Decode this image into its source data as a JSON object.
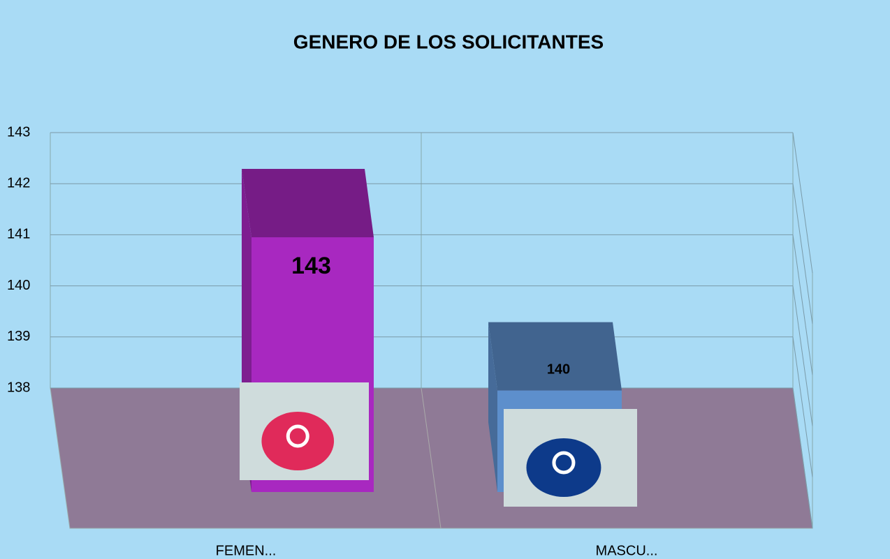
{
  "chart_data": {
    "type": "bar3d",
    "title": "GENERO DE LOS SOLICITANTES",
    "categories": [
      "FEMEN...",
      "MASCU..."
    ],
    "values": [
      143,
      140
    ],
    "colors": [
      "#a828c0",
      "#5d8fcc"
    ],
    "ylim": [
      138,
      143
    ],
    "yticks": [
      138,
      139,
      140,
      141,
      142,
      143
    ],
    "grid": true
  }
}
